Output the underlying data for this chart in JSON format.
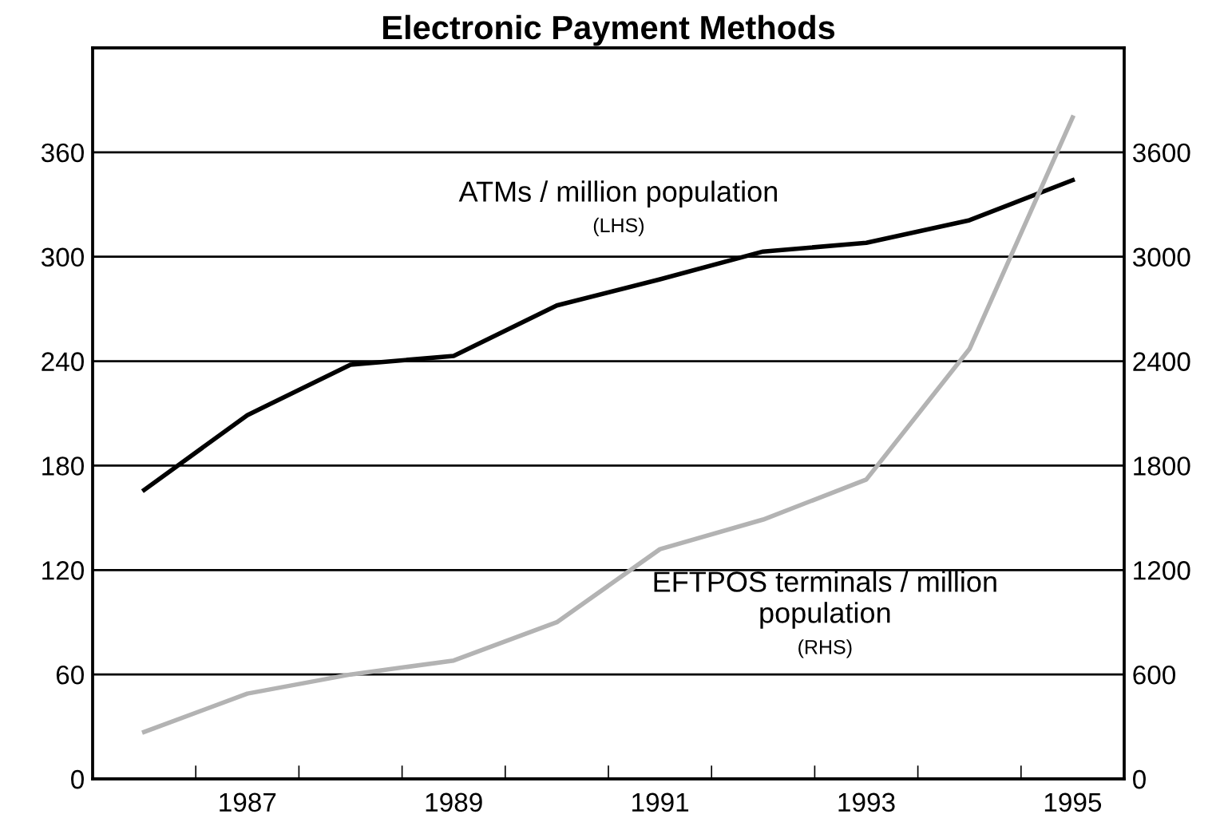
{
  "chart_data": {
    "type": "line",
    "title": "Electronic Payment Methods",
    "categories": [
      null,
      "1987",
      null,
      "1989",
      null,
      "1991",
      null,
      "1993",
      null,
      "1995"
    ],
    "series": [
      {
        "color": "#000000",
        "values": [
          166,
          209,
          238,
          243,
          272,
          287,
          303,
          308,
          321,
          344
        ]
      },
      {
        "color": "#b3b3b3",
        "axis": "y2",
        "values": [
          270,
          490,
          600,
          680,
          900,
          1320,
          1490,
          1720,
          2470,
          3800
        ]
      }
    ],
    "ylim": [
      0,
      420
    ],
    "yticks": [
      0,
      60,
      120,
      180,
      240,
      300,
      360
    ],
    "y2lim": [
      0,
      4200
    ],
    "y2ticks": [
      0,
      600,
      1200,
      1800,
      2400,
      3000,
      3600
    ],
    "annotations": [
      "ATMs / million population",
      "(LHS)",
      "EFTPOS terminals / million\npopulation",
      "(RHS)"
    ],
    "grid": "y",
    "legend": false,
    "marker": "none",
    "line_style": "solid"
  }
}
